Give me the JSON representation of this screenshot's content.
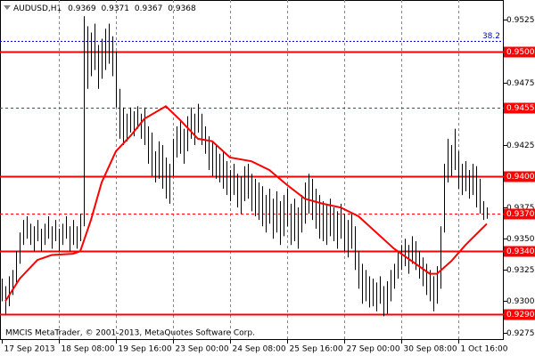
{
  "chart_data": {
    "type": "ohlc",
    "header": {
      "symbol": "AUDUSD,H1",
      "ohlc": [
        0.9369,
        0.9371,
        0.9367,
        0.9368
      ]
    },
    "footer": "MMCIS MetaTrader, © 2001-2013, MetaQuotes Software Corp.",
    "bars": {
      "high": [
        0.9318,
        0.9312,
        0.932,
        0.9325,
        0.934,
        0.9355,
        0.9365,
        0.9368,
        0.9362,
        0.936,
        0.9365,
        0.9358,
        0.9362,
        0.9368,
        0.936,
        0.9365,
        0.9358,
        0.9362,
        0.9368,
        0.936,
        0.9365,
        0.936,
        0.937,
        0.9528,
        0.952,
        0.9515,
        0.9522,
        0.9505,
        0.951,
        0.9518,
        0.9522,
        0.9512,
        0.95,
        0.947,
        0.9455,
        0.945,
        0.9455,
        0.9452,
        0.9456,
        0.945,
        0.9455,
        0.944,
        0.9435,
        0.942,
        0.9428,
        0.9425,
        0.9415,
        0.941,
        0.943,
        0.944,
        0.9445,
        0.9438,
        0.9448,
        0.9455,
        0.945,
        0.9458,
        0.945,
        0.944,
        0.9432,
        0.9428,
        0.9425,
        0.9418,
        0.942,
        0.9412,
        0.9405,
        0.941,
        0.9402,
        0.94,
        0.9408,
        0.941,
        0.9402,
        0.9398,
        0.9395,
        0.9392,
        0.9385,
        0.939,
        0.9382,
        0.9388,
        0.938,
        0.9385,
        0.939,
        0.9378,
        0.9382,
        0.9375,
        0.9385,
        0.9395,
        0.9402,
        0.9398,
        0.939,
        0.9385,
        0.938,
        0.9378,
        0.9382,
        0.9375,
        0.9372,
        0.9378,
        0.937,
        0.9365,
        0.937,
        0.936,
        0.934,
        0.933,
        0.9325,
        0.932,
        0.9318,
        0.9315,
        0.932,
        0.9312,
        0.9316,
        0.9325,
        0.933,
        0.934,
        0.9345,
        0.935,
        0.9345,
        0.9352,
        0.9348,
        0.934,
        0.9335,
        0.933,
        0.9325,
        0.932,
        0.9328,
        0.936,
        0.941,
        0.943,
        0.9425,
        0.9438,
        0.942,
        0.941,
        0.9412,
        0.9405,
        0.941,
        0.9408,
        0.9398,
        0.938,
        0.9375
      ],
      "low": [
        0.93,
        0.929,
        0.9296,
        0.9305,
        0.9315,
        0.933,
        0.9345,
        0.935,
        0.9345,
        0.934,
        0.9348,
        0.934,
        0.9345,
        0.935,
        0.9342,
        0.9348,
        0.934,
        0.9345,
        0.935,
        0.934,
        0.9345,
        0.9342,
        0.9348,
        0.936,
        0.947,
        0.948,
        0.9485,
        0.947,
        0.9478,
        0.9485,
        0.949,
        0.948,
        0.9455,
        0.943,
        0.9425,
        0.9428,
        0.9435,
        0.9432,
        0.9438,
        0.943,
        0.9425,
        0.941,
        0.94,
        0.9395,
        0.9398,
        0.939,
        0.9382,
        0.9378,
        0.94,
        0.9415,
        0.9418,
        0.941,
        0.942,
        0.943,
        0.9425,
        0.9435,
        0.9425,
        0.9418,
        0.9405,
        0.94,
        0.9398,
        0.9395,
        0.939,
        0.9385,
        0.938,
        0.9385,
        0.9375,
        0.937,
        0.938,
        0.9382,
        0.9372,
        0.9368,
        0.9365,
        0.936,
        0.9355,
        0.9362,
        0.935,
        0.9355,
        0.9345,
        0.9352,
        0.936,
        0.9345,
        0.9348,
        0.9342,
        0.9355,
        0.9362,
        0.937,
        0.9365,
        0.9358,
        0.935,
        0.9348,
        0.9345,
        0.9352,
        0.9348,
        0.9342,
        0.935,
        0.934,
        0.9335,
        0.9342,
        0.9325,
        0.931,
        0.9298,
        0.93,
        0.9295,
        0.9296,
        0.9292,
        0.9298,
        0.9288,
        0.929,
        0.93,
        0.931,
        0.9318,
        0.9325,
        0.9328,
        0.9322,
        0.933,
        0.9325,
        0.9318,
        0.9312,
        0.9305,
        0.93,
        0.9292,
        0.9298,
        0.931,
        0.9355,
        0.9395,
        0.94,
        0.9405,
        0.939,
        0.9385,
        0.9388,
        0.9382,
        0.9385,
        0.9375,
        0.937,
        0.9365,
        0.9366
      ],
      "color": "#000000"
    },
    "ma": {
      "x": [
        1,
        5,
        10,
        14,
        20,
        22,
        25,
        28,
        32,
        36,
        40,
        46,
        50,
        55,
        59,
        64,
        70,
        75,
        80,
        85,
        90,
        95,
        100,
        105,
        110,
        115,
        120,
        122,
        126,
        130,
        136
      ],
      "values": [
        0.93,
        0.9318,
        0.9333,
        0.9337,
        0.9338,
        0.934,
        0.9365,
        0.9395,
        0.942,
        0.9432,
        0.9446,
        0.9456,
        0.9445,
        0.943,
        0.9428,
        0.9415,
        0.9412,
        0.9405,
        0.9393,
        0.9382,
        0.9378,
        0.9375,
        0.9368,
        0.9355,
        0.9342,
        0.9332,
        0.9322,
        0.9322,
        0.9332,
        0.9345,
        0.9362
      ],
      "color": "#ff0000"
    },
    "levels": [
      {
        "value": 0.95,
        "label": "0.9500",
        "style": "solid",
        "color": "#ff0000"
      },
      {
        "value": 0.9455,
        "label": "0.9455",
        "style": "dashed",
        "color": "#ff0000"
      },
      {
        "value": 0.94,
        "label": "0.9400",
        "style": "solid",
        "color": "#ff0000"
      },
      {
        "value": 0.937,
        "label": "0.9370",
        "style": "dashed",
        "color": "#ff0000"
      },
      {
        "value": 0.934,
        "label": "0.9340",
        "style": "solid",
        "color": "#ff0000"
      },
      {
        "value": 0.929,
        "label": "0.9290",
        "style": "solid",
        "color": "#ff0000"
      }
    ],
    "fib": {
      "level": 38.2,
      "price": 0.9508,
      "color": "#0000cc"
    },
    "ylim": [
      0.9269,
      0.9541
    ],
    "yticks": [
      0.9525,
      0.9475,
      0.9425,
      0.9375,
      {
        "value": 0.935,
        "label": "0.9350"
      },
      0.9325,
      {
        "value": 0.93,
        "label": "0.9300"
      },
      0.9275
    ],
    "xlim": [
      -0.5,
      140.75
    ],
    "xticks": [
      {
        "value": 0,
        "label": "17 Sep 2013"
      },
      {
        "value": 16,
        "label": "18 Sep 08:00"
      },
      {
        "value": 32,
        "label": "19 Sep 16:00"
      },
      {
        "value": 48,
        "label": "23 Sep 00:00"
      },
      {
        "value": 64,
        "label": "24 Sep 08:00"
      },
      {
        "value": 80,
        "label": "25 Sep 16:00"
      },
      {
        "value": 96,
        "label": "27 Sep 00:00"
      },
      {
        "value": 112,
        "label": "30 Sep 08:00"
      },
      {
        "value": 128,
        "label": "1 Oct 16:00"
      }
    ]
  }
}
